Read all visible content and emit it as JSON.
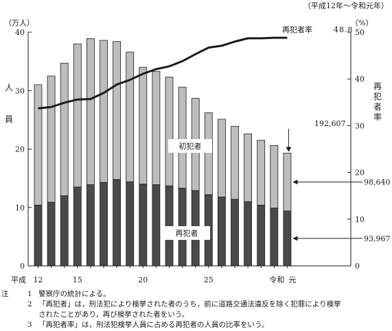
{
  "chart_data": {
    "type": "bar",
    "stacked": true,
    "period_note": "（平成12年～令和元年）",
    "left_axis": {
      "unit": "（万人）",
      "label_chars": [
        "人",
        "員"
      ],
      "ylim": [
        0,
        40
      ],
      "ticks": [
        0,
        10,
        20,
        30,
        40
      ]
    },
    "right_axis": {
      "unit": "（%）",
      "label_chars": [
        "再",
        "犯",
        "者",
        "率"
      ],
      "ylim": [
        0,
        50
      ],
      "ticks": [
        0,
        10,
        20,
        30,
        40,
        50
      ]
    },
    "x_ticks": [
      {
        "index": 0,
        "label": "12"
      },
      {
        "index": 3,
        "label": "15"
      },
      {
        "index": 8,
        "label": "20"
      },
      {
        "index": 13,
        "label": "25"
      },
      {
        "index": 19,
        "label": "令和"
      },
      {
        "index": 19,
        "label": "元"
      }
    ],
    "x_era_label": "平成",
    "categories": [
      "平成12",
      "平成13",
      "平成14",
      "平成15",
      "平成16",
      "平成17",
      "平成18",
      "平成19",
      "平成20",
      "平成21",
      "平成22",
      "平成23",
      "平成24",
      "平成25",
      "平成26",
      "平成27",
      "平成28",
      "平成29",
      "平成30",
      "令和元"
    ],
    "series": [
      {
        "name": "再犯者",
        "values": [
          10.4,
          10.9,
          12.0,
          13.5,
          13.9,
          14.3,
          14.8,
          14.4,
          14.0,
          13.9,
          13.7,
          13.3,
          12.9,
          12.2,
          11.8,
          11.4,
          11.0,
          10.4,
          9.9,
          9.4
        ]
      },
      {
        "name": "初犯者",
        "values": [
          20.6,
          21.6,
          22.7,
          24.5,
          25.0,
          24.3,
          23.6,
          22.2,
          20.0,
          19.4,
          18.6,
          17.3,
          15.8,
          14.0,
          13.3,
          12.5,
          11.6,
          11.1,
          10.7,
          9.9
        ]
      }
    ],
    "line": {
      "name": "再犯者率",
      "values": [
        33.7,
        34.0,
        34.9,
        35.6,
        35.7,
        37.0,
        38.8,
        39.8,
        41.1,
        42.1,
        42.7,
        43.8,
        45.3,
        46.7,
        47.1,
        48.0,
        48.7,
        48.7,
        48.8,
        48.8
      ]
    },
    "annotations": {
      "line_label": "再犯者率",
      "line_end_value": "48.8",
      "total_last": "192,607",
      "first_last": "98,640",
      "repeat_last": "93,967",
      "first_series_label": "初犯者",
      "repeat_series_label": "再犯者"
    },
    "colors": {
      "repeat": "#4a4a4a",
      "first": "#bdbdbd",
      "line": "#1a1a1a",
      "axis": "#1a1a1a"
    }
  },
  "notes": {
    "head": "注",
    "items": [
      {
        "num": "1",
        "lines": [
          "警察庁の統計による。"
        ]
      },
      {
        "num": "2",
        "lines": [
          "「再犯者」は，刑法犯により検挙された者のうち，前に道路交通法違反を除く犯罪により検挙",
          "されたことがあり，再び検挙された者をいう。"
        ]
      },
      {
        "num": "3",
        "lines": [
          "「再犯者率」は，刑法犯検挙人員に占める再犯者の人員の比率をいう。"
        ]
      }
    ]
  }
}
